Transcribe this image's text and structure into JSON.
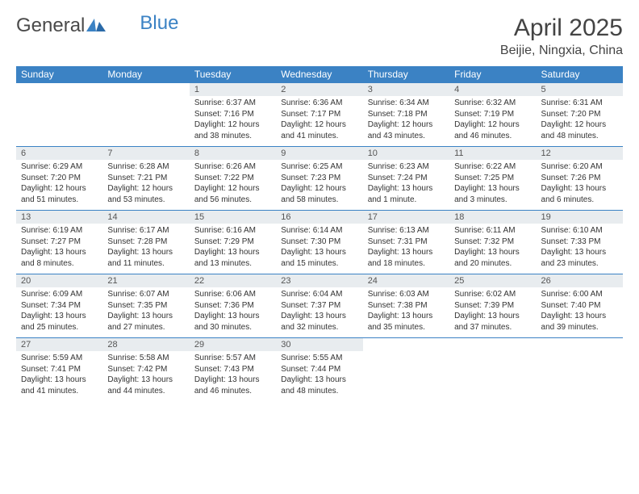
{
  "logo": {
    "text1": "General",
    "text2": "Blue"
  },
  "title": {
    "month": "April 2025",
    "location": "Beijie, Ningxia, China"
  },
  "colors": {
    "header_bg": "#3b82c4",
    "header_text": "#ffffff",
    "daynum_bg": "#e8ecef",
    "daynum_text": "#555555",
    "body_text": "#333333",
    "border": "#3b82c4"
  },
  "weekdays": [
    "Sunday",
    "Monday",
    "Tuesday",
    "Wednesday",
    "Thursday",
    "Friday",
    "Saturday"
  ],
  "weeks": [
    {
      "nums": [
        "",
        "",
        "1",
        "2",
        "3",
        "4",
        "5"
      ],
      "cells": [
        null,
        null,
        {
          "sr": "Sunrise: 6:37 AM",
          "ss": "Sunset: 7:16 PM",
          "dl": "Daylight: 12 hours and 38 minutes."
        },
        {
          "sr": "Sunrise: 6:36 AM",
          "ss": "Sunset: 7:17 PM",
          "dl": "Daylight: 12 hours and 41 minutes."
        },
        {
          "sr": "Sunrise: 6:34 AM",
          "ss": "Sunset: 7:18 PM",
          "dl": "Daylight: 12 hours and 43 minutes."
        },
        {
          "sr": "Sunrise: 6:32 AM",
          "ss": "Sunset: 7:19 PM",
          "dl": "Daylight: 12 hours and 46 minutes."
        },
        {
          "sr": "Sunrise: 6:31 AM",
          "ss": "Sunset: 7:20 PM",
          "dl": "Daylight: 12 hours and 48 minutes."
        }
      ]
    },
    {
      "nums": [
        "6",
        "7",
        "8",
        "9",
        "10",
        "11",
        "12"
      ],
      "cells": [
        {
          "sr": "Sunrise: 6:29 AM",
          "ss": "Sunset: 7:20 PM",
          "dl": "Daylight: 12 hours and 51 minutes."
        },
        {
          "sr": "Sunrise: 6:28 AM",
          "ss": "Sunset: 7:21 PM",
          "dl": "Daylight: 12 hours and 53 minutes."
        },
        {
          "sr": "Sunrise: 6:26 AM",
          "ss": "Sunset: 7:22 PM",
          "dl": "Daylight: 12 hours and 56 minutes."
        },
        {
          "sr": "Sunrise: 6:25 AM",
          "ss": "Sunset: 7:23 PM",
          "dl": "Daylight: 12 hours and 58 minutes."
        },
        {
          "sr": "Sunrise: 6:23 AM",
          "ss": "Sunset: 7:24 PM",
          "dl": "Daylight: 13 hours and 1 minute."
        },
        {
          "sr": "Sunrise: 6:22 AM",
          "ss": "Sunset: 7:25 PM",
          "dl": "Daylight: 13 hours and 3 minutes."
        },
        {
          "sr": "Sunrise: 6:20 AM",
          "ss": "Sunset: 7:26 PM",
          "dl": "Daylight: 13 hours and 6 minutes."
        }
      ]
    },
    {
      "nums": [
        "13",
        "14",
        "15",
        "16",
        "17",
        "18",
        "19"
      ],
      "cells": [
        {
          "sr": "Sunrise: 6:19 AM",
          "ss": "Sunset: 7:27 PM",
          "dl": "Daylight: 13 hours and 8 minutes."
        },
        {
          "sr": "Sunrise: 6:17 AM",
          "ss": "Sunset: 7:28 PM",
          "dl": "Daylight: 13 hours and 11 minutes."
        },
        {
          "sr": "Sunrise: 6:16 AM",
          "ss": "Sunset: 7:29 PM",
          "dl": "Daylight: 13 hours and 13 minutes."
        },
        {
          "sr": "Sunrise: 6:14 AM",
          "ss": "Sunset: 7:30 PM",
          "dl": "Daylight: 13 hours and 15 minutes."
        },
        {
          "sr": "Sunrise: 6:13 AM",
          "ss": "Sunset: 7:31 PM",
          "dl": "Daylight: 13 hours and 18 minutes."
        },
        {
          "sr": "Sunrise: 6:11 AM",
          "ss": "Sunset: 7:32 PM",
          "dl": "Daylight: 13 hours and 20 minutes."
        },
        {
          "sr": "Sunrise: 6:10 AM",
          "ss": "Sunset: 7:33 PM",
          "dl": "Daylight: 13 hours and 23 minutes."
        }
      ]
    },
    {
      "nums": [
        "20",
        "21",
        "22",
        "23",
        "24",
        "25",
        "26"
      ],
      "cells": [
        {
          "sr": "Sunrise: 6:09 AM",
          "ss": "Sunset: 7:34 PM",
          "dl": "Daylight: 13 hours and 25 minutes."
        },
        {
          "sr": "Sunrise: 6:07 AM",
          "ss": "Sunset: 7:35 PM",
          "dl": "Daylight: 13 hours and 27 minutes."
        },
        {
          "sr": "Sunrise: 6:06 AM",
          "ss": "Sunset: 7:36 PM",
          "dl": "Daylight: 13 hours and 30 minutes."
        },
        {
          "sr": "Sunrise: 6:04 AM",
          "ss": "Sunset: 7:37 PM",
          "dl": "Daylight: 13 hours and 32 minutes."
        },
        {
          "sr": "Sunrise: 6:03 AM",
          "ss": "Sunset: 7:38 PM",
          "dl": "Daylight: 13 hours and 35 minutes."
        },
        {
          "sr": "Sunrise: 6:02 AM",
          "ss": "Sunset: 7:39 PM",
          "dl": "Daylight: 13 hours and 37 minutes."
        },
        {
          "sr": "Sunrise: 6:00 AM",
          "ss": "Sunset: 7:40 PM",
          "dl": "Daylight: 13 hours and 39 minutes."
        }
      ]
    },
    {
      "nums": [
        "27",
        "28",
        "29",
        "30",
        "",
        "",
        ""
      ],
      "cells": [
        {
          "sr": "Sunrise: 5:59 AM",
          "ss": "Sunset: 7:41 PM",
          "dl": "Daylight: 13 hours and 41 minutes."
        },
        {
          "sr": "Sunrise: 5:58 AM",
          "ss": "Sunset: 7:42 PM",
          "dl": "Daylight: 13 hours and 44 minutes."
        },
        {
          "sr": "Sunrise: 5:57 AM",
          "ss": "Sunset: 7:43 PM",
          "dl": "Daylight: 13 hours and 46 minutes."
        },
        {
          "sr": "Sunrise: 5:55 AM",
          "ss": "Sunset: 7:44 PM",
          "dl": "Daylight: 13 hours and 48 minutes."
        },
        null,
        null,
        null
      ]
    }
  ]
}
